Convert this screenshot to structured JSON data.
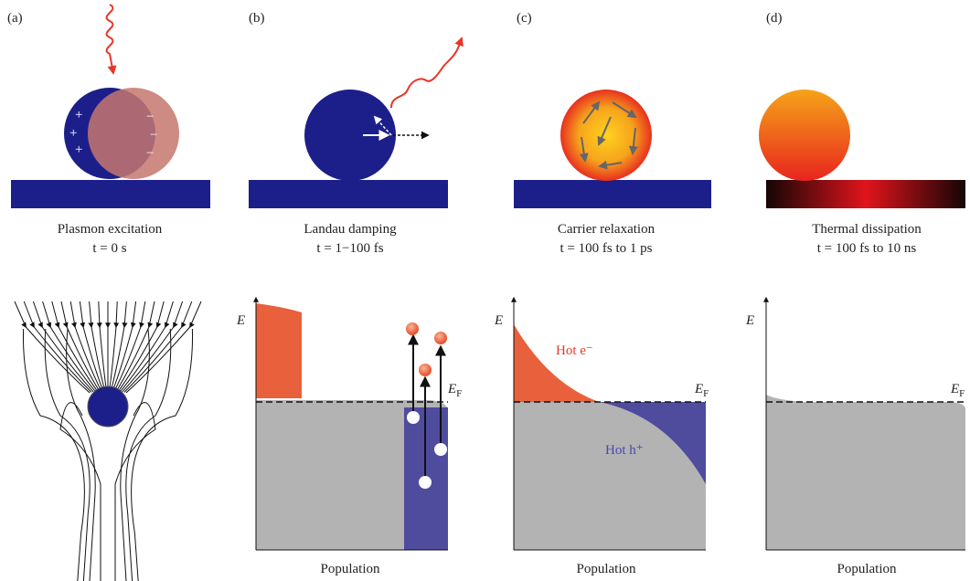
{
  "panels": [
    {
      "label": "(a)",
      "title": "Plasmon excitation",
      "time": "t = 0 s",
      "charges": {
        "positive": "+",
        "negative": "−"
      }
    },
    {
      "label": "(b)",
      "title": "Landau damping",
      "time": "t = 1−100 fs"
    },
    {
      "label": "(c)",
      "title": "Carrier relaxation",
      "time": "t = 100 fs to 1 ps"
    },
    {
      "label": "(d)",
      "title": "Thermal dissipation",
      "time": "t = 100 fs to 10 ns"
    }
  ],
  "energy_plots": [
    {
      "axis_label": "E",
      "fermi_label": {
        "symbol": "E",
        "subscript": "F"
      },
      "x_label": "Population"
    },
    {
      "axis_label": "E",
      "fermi_label": {
        "symbol": "E",
        "subscript": "F"
      },
      "x_label": "Population",
      "hot_electrons": "Hot e⁻",
      "hot_holes": "Hot h⁺"
    },
    {
      "axis_label": "E",
      "fermi_label": {
        "symbol": "E",
        "subscript": "F"
      },
      "x_label": "Population"
    }
  ]
}
